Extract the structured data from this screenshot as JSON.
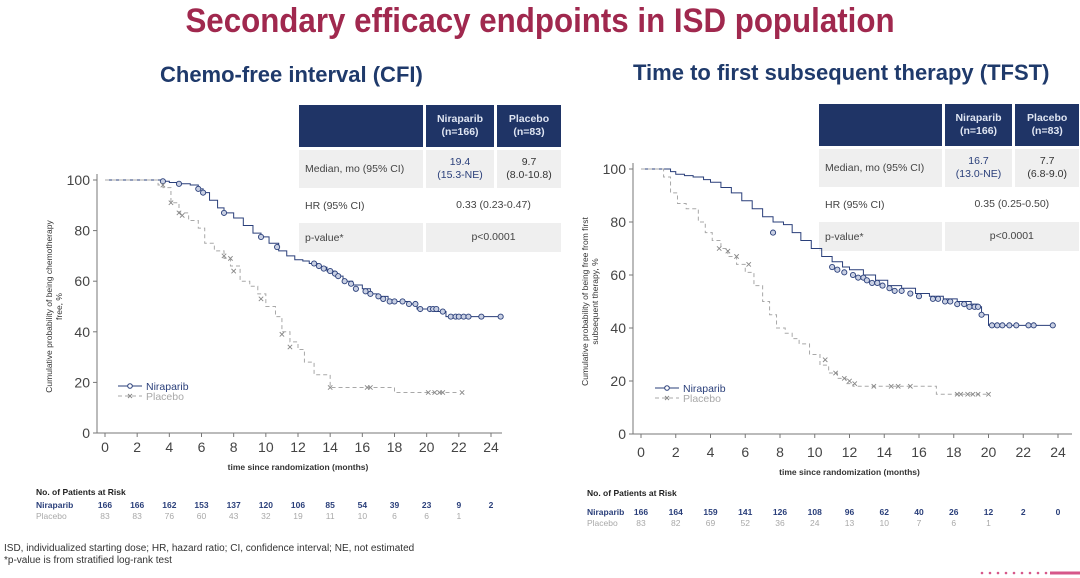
{
  "title": "Secondary efficacy endpoints in ISD population",
  "colors": {
    "title": "#a0284e",
    "subtitle": "#1f3a6b",
    "table_header": "#1f3466",
    "niraparib": "#2a3f7a",
    "placebo": "#a8a8a8"
  },
  "panels": [
    {
      "subtitle": "Chemo-free interval (CFI)",
      "table": {
        "headers": [
          "",
          "Niraparib\n(n=166)",
          "Placebo\n(n=83)"
        ],
        "header_niraparib": [
          "Niraparib",
          "(n=166)"
        ],
        "header_placebo": [
          "Placebo",
          "(n=83)"
        ],
        "rows": [
          {
            "label": "Median, mo (95% CI)",
            "niraparib": [
              "19.4",
              "(15.3-NE)"
            ],
            "placebo": [
              "9.7",
              "(8.0-10.8)"
            ]
          },
          {
            "label": "HR (95% CI)",
            "value": "0.33 (0.23-0.47)"
          },
          {
            "label": "p-value*",
            "value": "p<0.0001"
          }
        ]
      },
      "risk_table": {
        "header": "No. of Patients at Risk",
        "rows": [
          {
            "label": "Niraparib",
            "values": [
              "166",
              "166",
              "162",
              "153",
              "137",
              "120",
              "106",
              "85",
              "54",
              "39",
              "23",
              "9",
              "2"
            ]
          },
          {
            "label": "Placebo",
            "values": [
              "83",
              "83",
              "76",
              "60",
              "43",
              "32",
              "19",
              "11",
              "10",
              "6",
              "6",
              "1",
              ""
            ]
          }
        ]
      }
    },
    {
      "subtitle": "Time to first subsequent therapy (TFST)",
      "table": {
        "header_niraparib": [
          "Niraparib",
          "(n=166)"
        ],
        "header_placebo": [
          "Placebo",
          "(n=83)"
        ],
        "rows": [
          {
            "label": "Median, mo (95% CI)",
            "niraparib": [
              "16.7",
              "(13.0-NE)"
            ],
            "placebo": [
              "7.7",
              "(6.8-9.0)"
            ]
          },
          {
            "label": "HR (95% CI)",
            "value": "0.35 (0.25-0.50)"
          },
          {
            "label": "p-value*",
            "value": "p<0.0001"
          }
        ]
      },
      "risk_table": {
        "header": "No. of Patients at Risk",
        "rows": [
          {
            "label": "Niraparib",
            "values": [
              "166",
              "164",
              "159",
              "141",
              "126",
              "108",
              "96",
              "62",
              "40",
              "26",
              "12",
              "2",
              "0"
            ]
          },
          {
            "label": "Placebo",
            "values": [
              "83",
              "82",
              "69",
              "52",
              "36",
              "24",
              "13",
              "10",
              "7",
              "6",
              "1",
              "",
              ""
            ]
          }
        ]
      }
    }
  ],
  "chart_data": [
    {
      "type": "line",
      "title": "Chemo-free interval (CFI)",
      "xlabel": "time since randomization (months)",
      "ylabel": "Cumulative probability of being chemotherapy free, %",
      "xlim": [
        0,
        24
      ],
      "ylim": [
        0,
        100
      ],
      "xticks": [
        0,
        2,
        4,
        6,
        8,
        10,
        12,
        14,
        16,
        18,
        20,
        22,
        24
      ],
      "yticks": [
        0,
        20,
        40,
        60,
        80,
        100
      ],
      "legend": {
        "placement": "bottom-left",
        "entries": [
          "Niraparib",
          "Placebo"
        ]
      },
      "series": [
        {
          "name": "Niraparib",
          "step": true,
          "x": [
            0,
            3.3,
            3.6,
            4.0,
            4.6,
            5.3,
            5.8,
            6.1,
            6.5,
            7.0,
            7.4,
            8.0,
            8.6,
            9.2,
            9.7,
            10.2,
            10.8,
            11.3,
            11.8,
            12.3,
            12.7,
            13.2,
            13.8,
            14.3,
            14.8,
            15.4,
            16.0,
            16.5,
            17.0,
            17.6,
            18.2,
            18.8,
            19.4,
            20.0,
            20.5,
            21.2,
            22.0,
            23.0,
            24.6
          ],
          "y": [
            100,
            100,
            99.5,
            99,
            98.5,
            98,
            96.5,
            95,
            92,
            89,
            87,
            85,
            82,
            79,
            77.5,
            75,
            72,
            70,
            68.5,
            68,
            67,
            65.5,
            64,
            62,
            60,
            58.5,
            57,
            55,
            54,
            52,
            52,
            51,
            49,
            49,
            48,
            46,
            46,
            46,
            46
          ],
          "censor_x": [
            3.6,
            4.6,
            5.8,
            6.1,
            7.4,
            9.7,
            10.7,
            13.0,
            13.3,
            13.6,
            14.0,
            14.3,
            14.5,
            14.9,
            15.3,
            15.6,
            16.2,
            16.5,
            17.0,
            17.3,
            17.7,
            18.0,
            18.5,
            18.9,
            19.3,
            19.6,
            20.2,
            20.4,
            20.6,
            21.0,
            21.5,
            21.8,
            22.0,
            22.3,
            22.6,
            23.4,
            24.6
          ],
          "censor_y": [
            99.5,
            98.5,
            96.5,
            95,
            87,
            77.5,
            73.5,
            67,
            66,
            65,
            64,
            63,
            62,
            60,
            59,
            57,
            56,
            55,
            54,
            53,
            52,
            52,
            52,
            51,
            51,
            49,
            49,
            49,
            49,
            48,
            46,
            46,
            46,
            46,
            46,
            46,
            46
          ]
        },
        {
          "name": "Placebo",
          "step": true,
          "x": [
            0,
            3.3,
            3.6,
            4.1,
            4.6,
            5.2,
            5.8,
            6.2,
            6.8,
            7.4,
            7.8,
            8.4,
            9.0,
            9.5,
            10.0,
            10.6,
            11.0,
            11.5,
            12.0,
            12.4,
            13.0,
            14.0,
            15.0,
            16.0,
            17.3,
            18.0,
            19.5,
            20.0,
            21.0,
            22.0
          ],
          "y": [
            100,
            98,
            97,
            91,
            87,
            84,
            81,
            75,
            72,
            69,
            66,
            60,
            58,
            55,
            50,
            46,
            40,
            36,
            33,
            28,
            23,
            18,
            18,
            18,
            18,
            16,
            16,
            16,
            16,
            16
          ],
          "censor_x": [
            3.6,
            4.1,
            4.6,
            4.8,
            7.4,
            7.8,
            8.0,
            9.7,
            11.0,
            11.5,
            14.0,
            16.3,
            16.5,
            20.1,
            20.5,
            20.8,
            21.0,
            22.2
          ],
          "censor_y": [
            98,
            91,
            87,
            86,
            70,
            69,
            64,
            53,
            39,
            34,
            18,
            18,
            18,
            16,
            16,
            16,
            16,
            16
          ]
        }
      ]
    },
    {
      "type": "line",
      "title": "Time to first subsequent therapy (TFST)",
      "xlabel": "time since randomization (months)",
      "ylabel": "Cumulative probability of being free from first subsequent therapy, %",
      "xlim": [
        0,
        24
      ],
      "ylim": [
        0,
        100
      ],
      "xticks": [
        0,
        2,
        4,
        6,
        8,
        10,
        12,
        14,
        16,
        18,
        20,
        22,
        24
      ],
      "yticks": [
        0,
        20,
        40,
        60,
        80,
        100
      ],
      "legend": {
        "placement": "bottom-left",
        "entries": [
          "Niraparib",
          "Placebo"
        ]
      },
      "series": [
        {
          "name": "Niraparib",
          "step": true,
          "x": [
            0,
            1.7,
            2.0,
            2.5,
            3.0,
            3.6,
            4.0,
            4.6,
            5.2,
            5.8,
            6.4,
            7.0,
            7.6,
            8.2,
            8.7,
            9.2,
            9.8,
            10.4,
            11.0,
            11.6,
            12.0,
            12.8,
            13.5,
            14.2,
            15.0,
            15.8,
            16.6,
            17.4,
            18.2,
            19.0,
            19.4,
            19.6,
            20.0,
            22.0,
            23.7
          ],
          "y": [
            100,
            99,
            98,
            97.5,
            97,
            96,
            95,
            93,
            91,
            88,
            85,
            82,
            80,
            79,
            76,
            73,
            70,
            67,
            65,
            63,
            62,
            60,
            58,
            56,
            55,
            53,
            52,
            51,
            50,
            49,
            48,
            45,
            41,
            41,
            41
          ],
          "censor_x": [
            7.6,
            11.0,
            11.3,
            11.7,
            12.2,
            12.5,
            12.8,
            13.0,
            13.3,
            13.6,
            13.9,
            14.3,
            14.6,
            15.0,
            15.5,
            16.0,
            16.8,
            17.1,
            17.5,
            17.8,
            18.2,
            18.6,
            18.9,
            19.2,
            19.4,
            19.6,
            20.2,
            20.5,
            20.8,
            21.2,
            21.6,
            22.3,
            22.6,
            23.7
          ],
          "censor_y": [
            76,
            63,
            62,
            61,
            60,
            59,
            59,
            58,
            57,
            57,
            56,
            55,
            54,
            54,
            53,
            52,
            51,
            51,
            50,
            50,
            49,
            49,
            48,
            48,
            48,
            45,
            41,
            41,
            41,
            41,
            41,
            41,
            41,
            41
          ]
        },
        {
          "name": "Placebo",
          "step": true,
          "x": [
            0,
            1.3,
            1.7,
            2.1,
            2.6,
            3.3,
            3.7,
            4.1,
            4.6,
            5.0,
            5.5,
            6.0,
            6.5,
            7.0,
            7.4,
            7.8,
            8.3,
            8.7,
            9.1,
            9.7,
            10.3,
            10.8,
            11.3,
            11.8,
            12.2,
            12.6,
            13.3,
            14.5,
            15.5,
            16.5,
            17.0,
            19.5,
            20.0
          ],
          "y": [
            100,
            97,
            91,
            87,
            85,
            80,
            76,
            73,
            70,
            67,
            64,
            61,
            56,
            50,
            45,
            40,
            38,
            36,
            34,
            30,
            26,
            23,
            21,
            19,
            18,
            18,
            18,
            18,
            18,
            18,
            15,
            15,
            15
          ],
          "censor_x": [
            4.5,
            5.0,
            5.5,
            6.2,
            10.6,
            11.2,
            11.7,
            12.0,
            12.3,
            13.4,
            14.4,
            14.8,
            15.5,
            18.2,
            18.4,
            18.8,
            19.1,
            19.4,
            20.0
          ],
          "censor_y": [
            70,
            69,
            67,
            64,
            28,
            23,
            21,
            20,
            19,
            18,
            18,
            18,
            18,
            15,
            15,
            15,
            15,
            15,
            15
          ]
        }
      ]
    }
  ],
  "footnotes": [
    "ISD, individualized starting dose; HR, hazard ratio; CI, confidence interval; NE, not estimated",
    "*p-value is from stratified log-rank test"
  ]
}
